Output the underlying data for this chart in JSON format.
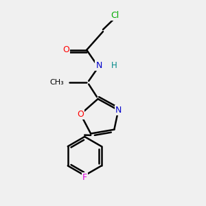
{
  "bg_color": "#f0f0f0",
  "bond_color": "#000000",
  "bond_width": 1.8,
  "atom_colors": {
    "Cl": "#00aa00",
    "O": "#ff0000",
    "N": "#0000cc",
    "H": "#008888",
    "F": "#dd00dd",
    "C": "#000000"
  },
  "font_size": 9,
  "fig_size": [
    3.0,
    3.0
  ],
  "dpi": 100
}
